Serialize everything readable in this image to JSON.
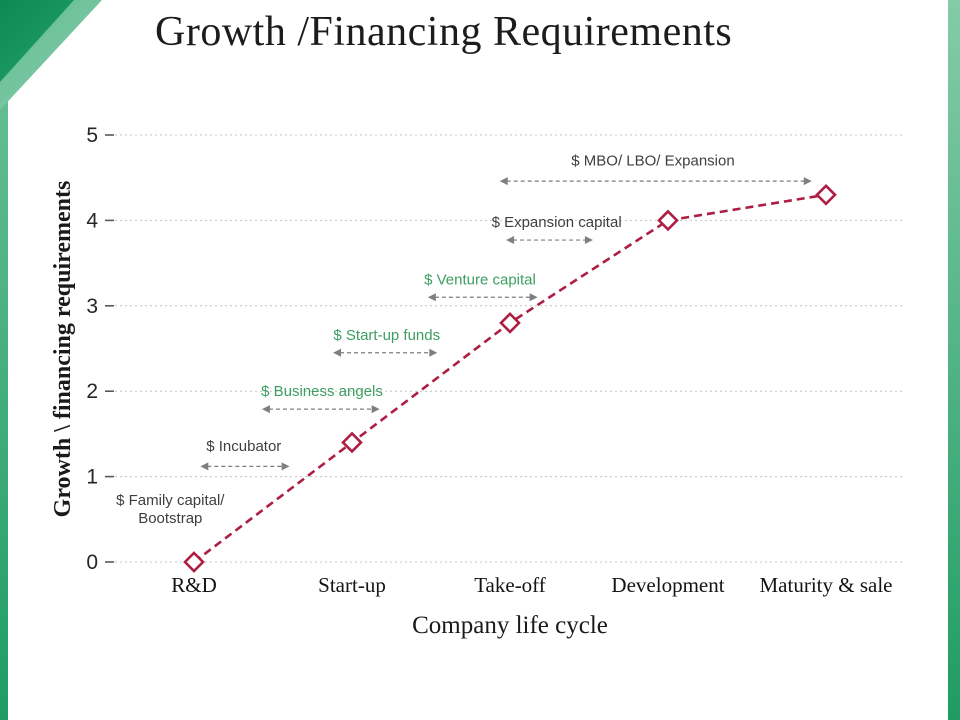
{
  "slide": {
    "title": "Growth /Financing Requirements"
  },
  "chart_data": {
    "type": "line",
    "title": "Growth /Financing Requirements",
    "xlabel": "Company life cycle",
    "ylabel": "Growth \\ financing requirements",
    "categories": [
      "R&D",
      "Start-up",
      "Take-off",
      "Development",
      "Maturity & sale"
    ],
    "values": [
      0,
      1.4,
      2.8,
      4,
      4.3
    ],
    "ylim": [
      0,
      5
    ],
    "yticks": [
      0,
      1,
      2,
      3,
      4,
      5
    ],
    "grid": "dotted-horizontal",
    "legend": "none",
    "line": {
      "color": "#ad1e42",
      "style": "dashed"
    },
    "marker": {
      "shape": "diamond",
      "fill": "#ffffff",
      "stroke": "#ad1e42"
    },
    "annotations": [
      {
        "label": "$ Family capital/\nBootstrap",
        "color": "#3f3f3f",
        "x": 0.07,
        "y": 0.62,
        "arrow": null
      },
      {
        "label": "$ Incubator",
        "color": "#3f3f3f",
        "x": 0.163,
        "y": 1.36,
        "arrow": {
          "x1": 0.108,
          "x2": 0.221,
          "y": 1.12
        }
      },
      {
        "label": "$ Business angels",
        "color": "#3d9e60",
        "x": 0.262,
        "y": 2.0,
        "arrow": {
          "x1": 0.186,
          "x2": 0.335,
          "y": 1.79
        }
      },
      {
        "label": "$ Start-up funds",
        "color": "#3d9e60",
        "x": 0.344,
        "y": 2.66,
        "arrow": {
          "x1": 0.276,
          "x2": 0.408,
          "y": 2.45
        }
      },
      {
        "label": "$ Venture capital",
        "color": "#3d9e60",
        "x": 0.462,
        "y": 3.31,
        "arrow": {
          "x1": 0.396,
          "x2": 0.535,
          "y": 3.1
        }
      },
      {
        "label": "$ Expansion capital",
        "color": "#3f3f3f",
        "x": 0.559,
        "y": 3.98,
        "arrow": {
          "x1": 0.495,
          "x2": 0.605,
          "y": 3.77
        }
      },
      {
        "label": "$ MBO/ LBO/ Expansion",
        "color": "#3f3f3f",
        "x": 0.681,
        "y": 4.7,
        "arrow": {
          "x1": 0.487,
          "x2": 0.882,
          "y": 4.46
        }
      }
    ],
    "colors": {
      "accent_green": "#21a366",
      "line": "#ad1e42",
      "annotation_gray": "#3f3f3f",
      "annotation_green": "#3d9e60",
      "arrow": "#7f7f7f",
      "grid": "#c4c4c4"
    }
  }
}
